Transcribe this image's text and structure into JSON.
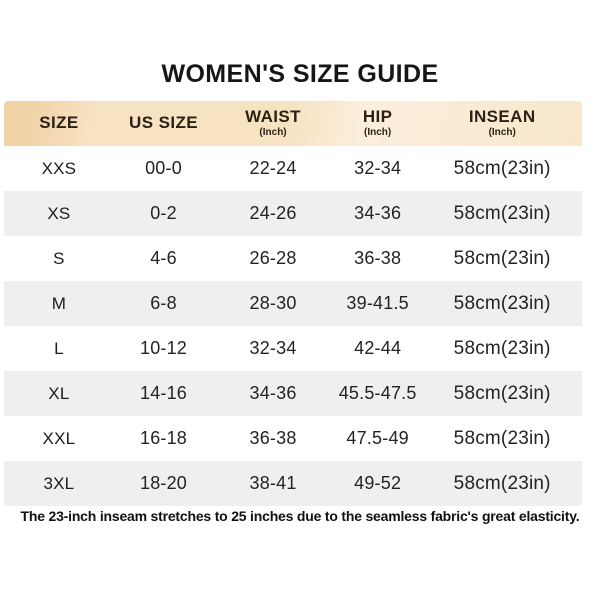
{
  "title": "WOMEN'S SIZE GUIDE",
  "footnote": "The 23-inch inseam stretches to 25 inches due to the seamless fabric's great elasticity.",
  "colors": {
    "header_band_dark": "#f1d3a8",
    "header_band_mid": "#f7e2c2",
    "header_band_light": "#fbeedb",
    "row_alt": "#efefef",
    "row_default": "#ffffff",
    "text": "#232323",
    "title_text": "#161616"
  },
  "chart_data": {
    "type": "table",
    "title": "WOMEN'S SIZE GUIDE",
    "columns": [
      {
        "label": "SIZE",
        "sub": ""
      },
      {
        "label": "US SIZE",
        "sub": ""
      },
      {
        "label": "WAIST",
        "sub": "(Inch)"
      },
      {
        "label": "HIP",
        "sub": "(Inch)"
      },
      {
        "label": "INSEAN",
        "sub": "(Inch)"
      }
    ],
    "rows": [
      [
        "XXS",
        "00-0",
        "22-24",
        "32-34",
        "58cm(23in)"
      ],
      [
        "XS",
        "0-2",
        "24-26",
        "34-36",
        "58cm(23in)"
      ],
      [
        "S",
        "4-6",
        "26-28",
        "36-38",
        "58cm(23in)"
      ],
      [
        "M",
        "6-8",
        "28-30",
        "39-41.5",
        "58cm(23in)"
      ],
      [
        "L",
        "10-12",
        "32-34",
        "42-44",
        "58cm(23in)"
      ],
      [
        "XL",
        "14-16",
        "34-36",
        "45.5-47.5",
        "58cm(23in)"
      ],
      [
        "XXL",
        "16-18",
        "36-38",
        "47.5-49",
        "58cm(23in)"
      ],
      [
        "3XL",
        "18-20",
        "38-41",
        "49-52",
        "58cm(23in)"
      ]
    ],
    "footnote": "The 23-inch inseam stretches to 25 inches due to the seamless fabric's great elasticity.",
    "layout": {
      "legend": "none",
      "grid": "alternating-row-stripes",
      "header_background": "peach-gradient"
    }
  }
}
